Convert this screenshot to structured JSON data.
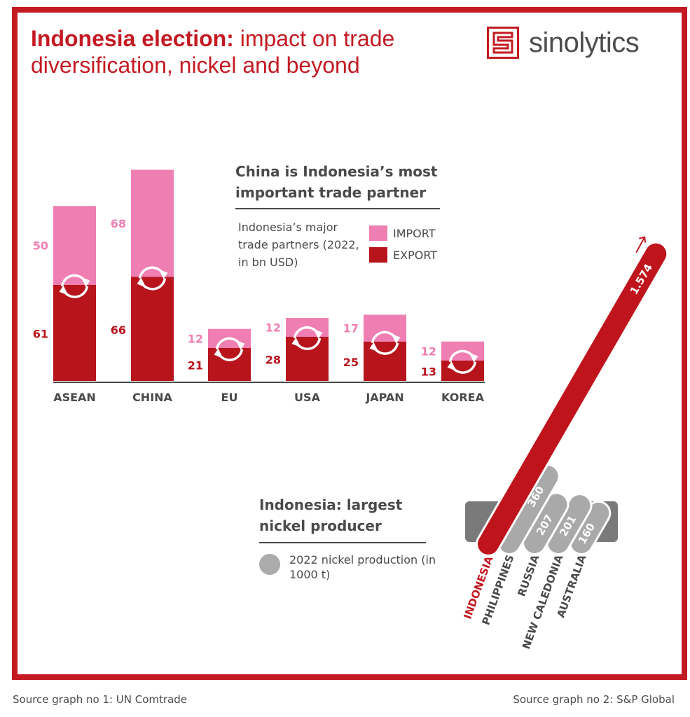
{
  "header": {
    "title_bold": "Indonesia election:",
    "title_rest": " impact on trade diversification, nickel and beyond",
    "logo_text": "sinolytics"
  },
  "trade_chart": {
    "title": "China is Indonesia’s most important trade partner",
    "subtitle": "Indonesia’s major trade partners (2022, in bn USD)",
    "legend_import": "IMPORT",
    "legend_export": "EXPORT"
  },
  "nickel_chart": {
    "title": "Indonesia: largest nickel producer",
    "legend": "2022 nickel production (in 1000 t)"
  },
  "sources": {
    "left": "Source graph no 1: UN Comtrade",
    "right": "Source graph no 2: S&P Global"
  },
  "colors": {
    "import": "#ef7fb3",
    "export": "#b8141c",
    "accent": "#c41a22",
    "nickel_other": "#a9a9a9",
    "text": "#4a4a4a"
  },
  "icons": {
    "cycle": "cycle-arrows-icon",
    "trend": "arrow-up-icon"
  },
  "chart_data": [
    {
      "type": "bar",
      "stacked": true,
      "categories": [
        "ASEAN",
        "CHINA",
        "EU",
        "USA",
        "JAPAN",
        "KOREA"
      ],
      "series": [
        {
          "name": "EXPORT",
          "values": [
            61,
            66,
            21,
            28,
            25,
            13
          ]
        },
        {
          "name": "IMPORT",
          "values": [
            50,
            68,
            12,
            12,
            17,
            12
          ]
        }
      ]
    },
    {
      "type": "bar",
      "categories": [
        "INDONESIA",
        "PHILIPPINES",
        "RUSSIA",
        "NEW CALEDONIA",
        "AUSTRALIA"
      ],
      "values": [
        1574,
        360,
        207,
        201,
        160
      ],
      "value_labels": [
        "1.574",
        "360",
        "207",
        "201",
        "160"
      ]
    }
  ]
}
